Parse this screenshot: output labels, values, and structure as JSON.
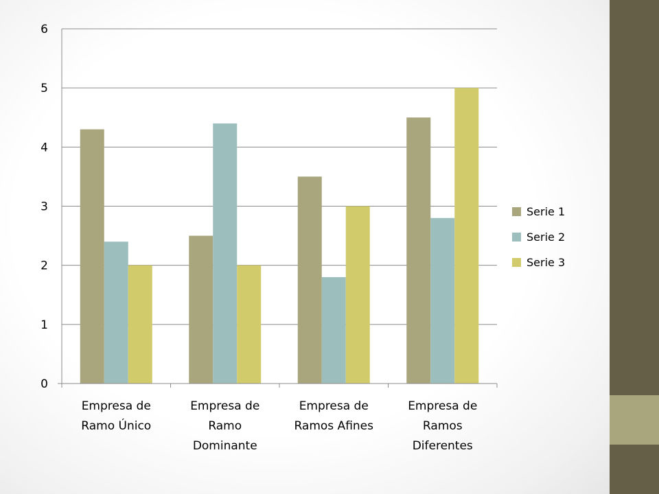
{
  "colors": {
    "side_dark": "#655f48",
    "side_light": "#a9a57c"
  },
  "chart_data": {
    "type": "bar",
    "categories": [
      [
        "Empresa de",
        "Ramo Único"
      ],
      [
        "Empresa de",
        "Ramo",
        "Dominante"
      ],
      [
        "Empresa de",
        "Ramos Afines"
      ],
      [
        "Empresa de",
        "Ramos",
        "Diferentes"
      ]
    ],
    "series": [
      {
        "name": "Serie 1",
        "values": [
          4.3,
          2.5,
          3.5,
          4.5
        ],
        "color": "#a9a57c"
      },
      {
        "name": "Serie 2",
        "values": [
          2.4,
          4.4,
          1.8,
          2.8
        ],
        "color": "#9cbebd"
      },
      {
        "name": "Serie 3",
        "values": [
          2.0,
          2.0,
          3.0,
          5.0
        ],
        "color": "#d2cb6c"
      }
    ],
    "ylim": [
      0,
      6
    ],
    "yticks": [
      "0",
      "1",
      "2",
      "3",
      "4",
      "5",
      "6"
    ],
    "grid": true,
    "legend_position": "right"
  }
}
